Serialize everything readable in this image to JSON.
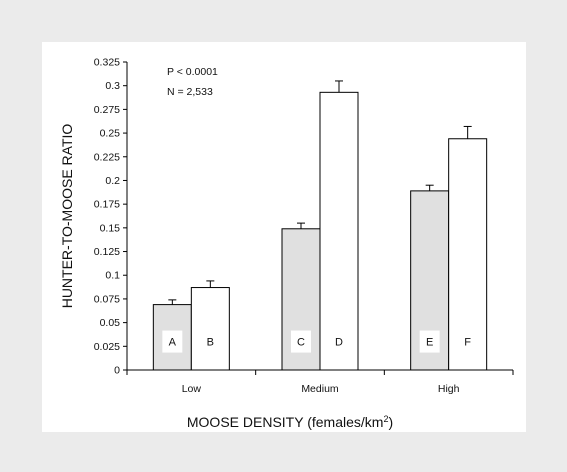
{
  "chart_data": {
    "type": "bar",
    "stats": [
      "P < 0.0001",
      "N = 2,533"
    ],
    "xlabel": "MOOSE DENSITY (females/km",
    "xlabel_superscript": "2",
    "xlabel_suffix": ")",
    "ylabel": "HUNTER-TO-MOOSE RATIO",
    "categories": [
      "Low",
      "Medium",
      "High"
    ],
    "series": [
      {
        "values": [
          0.069,
          0.149,
          0.189
        ],
        "errors": [
          0.005,
          0.006,
          0.006
        ],
        "bar_labels": [
          "A",
          "C",
          "E"
        ],
        "color": "#e0e0e0"
      },
      {
        "values": [
          0.087,
          0.293,
          0.244
        ],
        "errors": [
          0.007,
          0.012,
          0.013
        ],
        "bar_labels": [
          "B",
          "D",
          "F"
        ],
        "color": "#ffffff"
      }
    ],
    "ylim": [
      0,
      0.325
    ],
    "yticks": [
      "0",
      "0.025",
      "0.05",
      "0.075",
      "0.1",
      "0.125",
      "0.15",
      "0.175",
      "0.2",
      "0.225",
      "0.25",
      "0.275",
      "0.3",
      "0.325"
    ],
    "grid": false
  }
}
